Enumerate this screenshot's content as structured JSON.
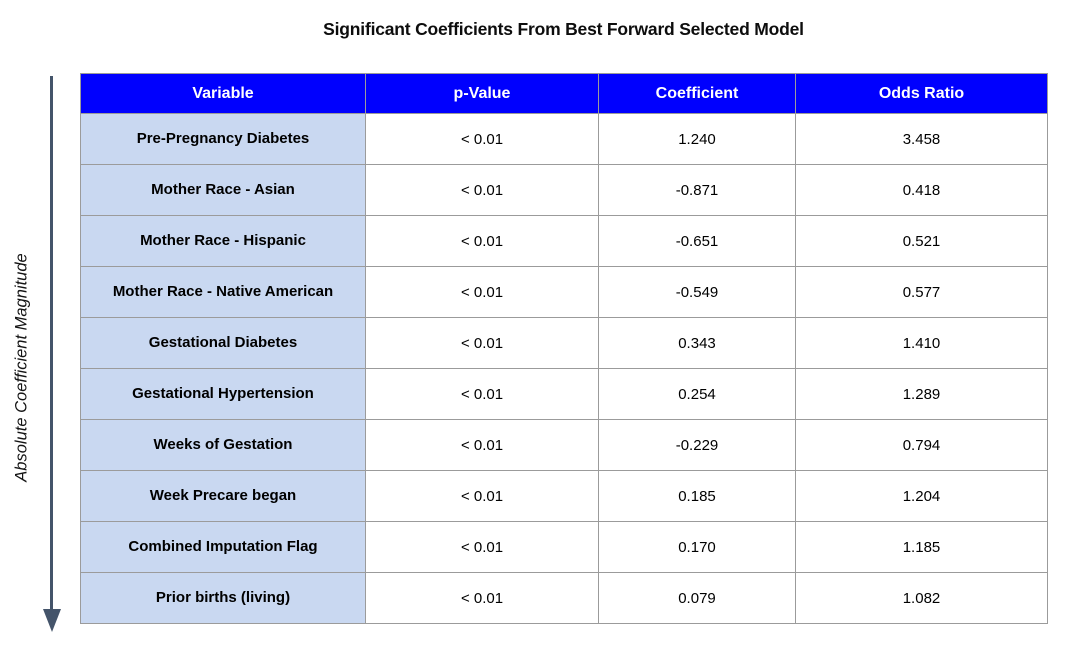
{
  "title": "Significant Coefficients From Best Forward Selected Model",
  "y_axis_label": "Absolute Coefficient Magnitude",
  "colors": {
    "header_bg": "#0000FE",
    "header_text": "#FFFFFF",
    "variable_column_bg": "#C9D8F1",
    "grid_border": "#9B9B9B",
    "arrow": "#44546A"
  },
  "chart_data": {
    "type": "table",
    "title": "Significant Coefficients From Best Forward Selected Model",
    "sort_axis_label": "Absolute Coefficient Magnitude",
    "sort_direction": "descending (arrow points down)",
    "columns": [
      "Variable",
      "p-Value",
      "Coefficient",
      "Odds Ratio"
    ],
    "rows": [
      [
        "Pre-Pregnancy Diabetes",
        "< 0.01",
        "1.240",
        "3.458"
      ],
      [
        "Mother Race - Asian",
        "< 0.01",
        "-0.871",
        "0.418"
      ],
      [
        "Mother Race - Hispanic",
        "< 0.01",
        "-0.651",
        "0.521"
      ],
      [
        "Mother Race - Native American",
        "< 0.01",
        "-0.549",
        "0.577"
      ],
      [
        "Gestational Diabetes",
        "< 0.01",
        "0.343",
        "1.410"
      ],
      [
        "Gestational Hypertension",
        "< 0.01",
        "0.254",
        "1.289"
      ],
      [
        "Weeks of Gestation",
        "< 0.01",
        "-0.229",
        "0.794"
      ],
      [
        "Week Precare began",
        "< 0.01",
        "0.185",
        "1.204"
      ],
      [
        "Combined Imputation Flag",
        "< 0.01",
        "0.170",
        "1.185"
      ],
      [
        "Prior births (living)",
        "< 0.01",
        "0.079",
        "1.082"
      ]
    ]
  }
}
